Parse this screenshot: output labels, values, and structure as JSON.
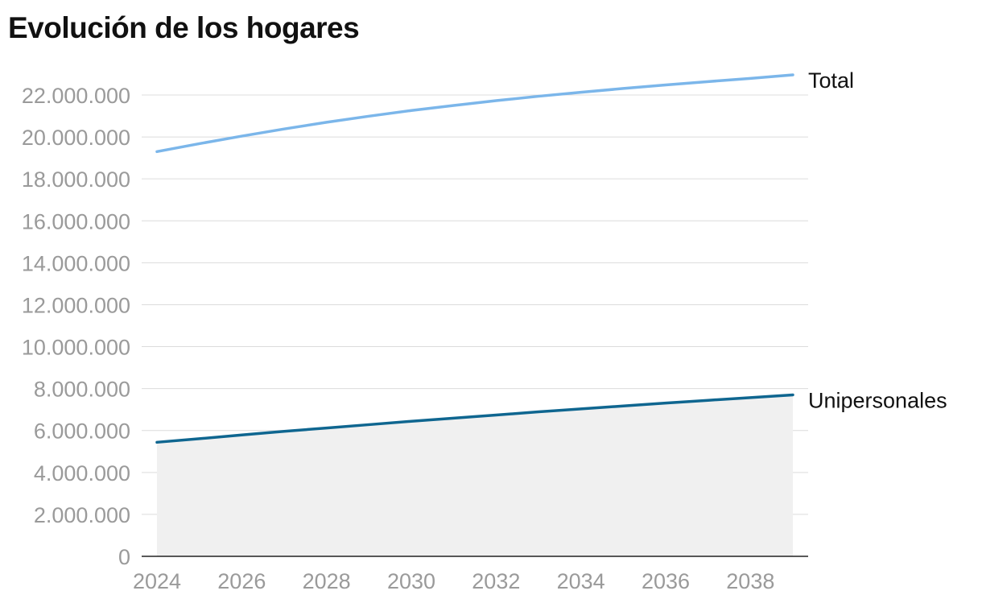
{
  "chart_data": {
    "type": "line",
    "title": "Evolución de los hogares",
    "xlabel": "",
    "ylabel": "",
    "x": [
      2024,
      2025,
      2026,
      2027,
      2028,
      2029,
      2030,
      2031,
      2032,
      2033,
      2034,
      2035,
      2036,
      2037,
      2038,
      2039
    ],
    "x_ticks": [
      "2024",
      "2026",
      "2028",
      "2030",
      "2032",
      "2034",
      "2036",
      "2038"
    ],
    "y_ticks": [
      "0",
      "2.000.000",
      "4.000.000",
      "6.000.000",
      "8.000.000",
      "10.000.000",
      "12.000.000",
      "14.000.000",
      "16.000.000",
      "18.000.000",
      "20.000.000",
      "22.000.000"
    ],
    "ylim": [
      0,
      22000000
    ],
    "xlim": [
      2024,
      2039
    ],
    "grid": true,
    "series": [
      {
        "name": "Total",
        "color": "#7bb6ea",
        "values": [
          19300000,
          19680000,
          20040000,
          20380000,
          20700000,
          20990000,
          21260000,
          21500000,
          21730000,
          21940000,
          22130000,
          22310000,
          22480000,
          22640000,
          22790000,
          22960000
        ]
      },
      {
        "name": "Unipersonales",
        "color": "#0f6690",
        "area": true,
        "area_color": "#f0f0f0",
        "values": [
          5440000,
          5610000,
          5790000,
          5960000,
          6120000,
          6280000,
          6440000,
          6590000,
          6740000,
          6890000,
          7030000,
          7170000,
          7310000,
          7440000,
          7570000,
          7700000
        ]
      }
    ]
  }
}
